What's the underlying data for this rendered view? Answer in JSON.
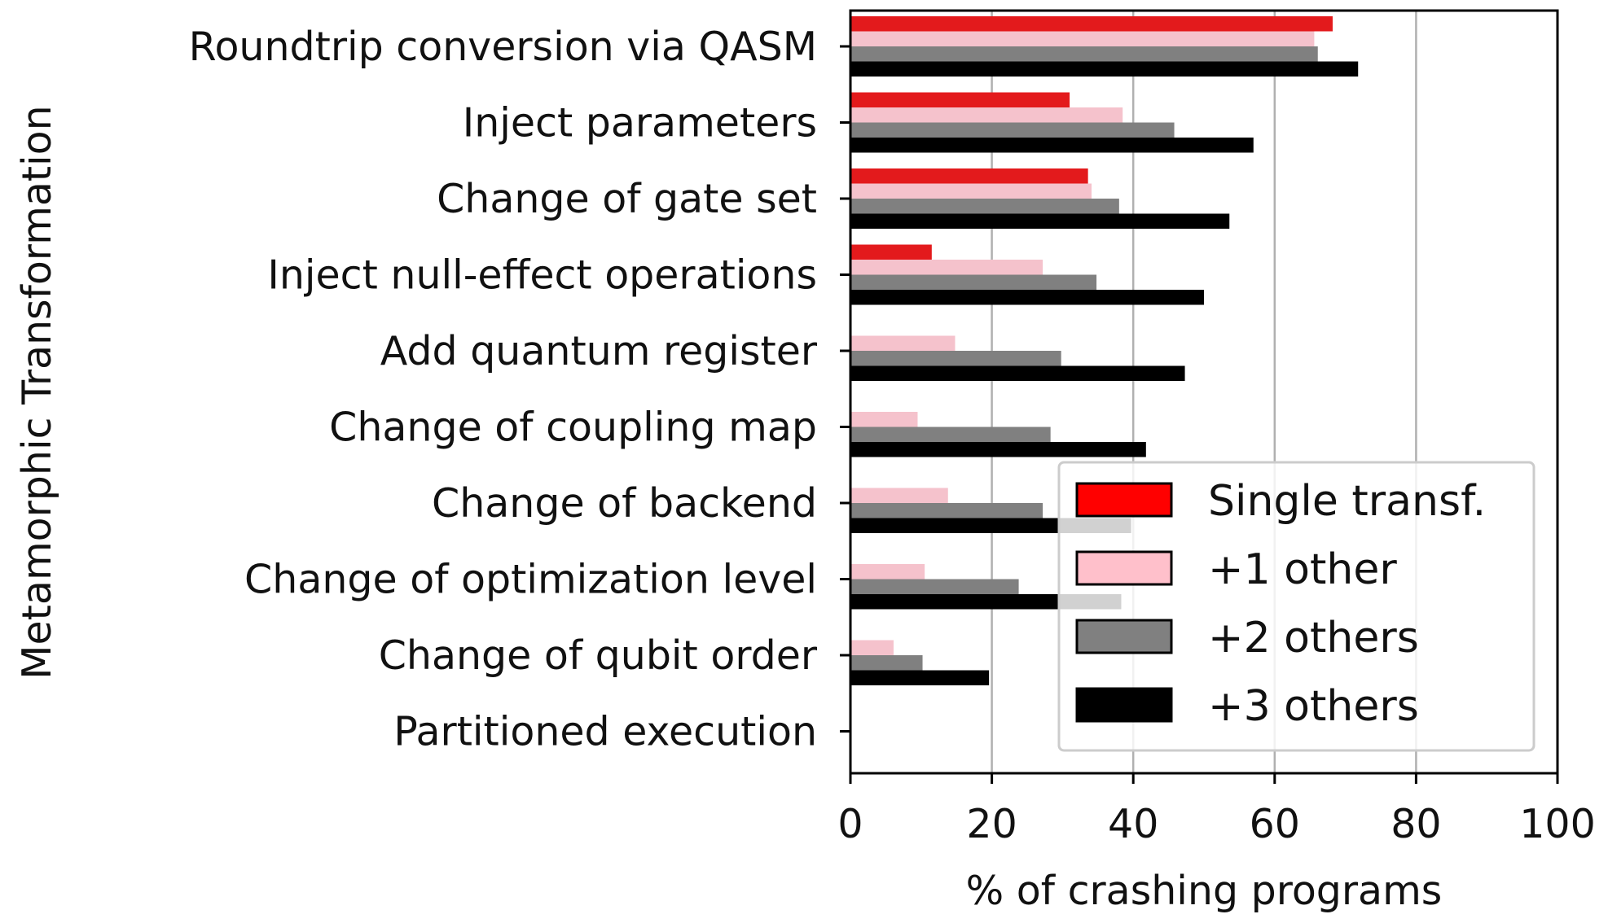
{
  "chart_data": {
    "type": "bar",
    "orientation": "horizontal",
    "title": "",
    "xlabel": "% of crashing programs",
    "ylabel": "Metamorphic Transformation",
    "xlim": [
      0,
      100
    ],
    "xticks": [
      "0",
      "20",
      "40",
      "60",
      "80",
      "100"
    ],
    "grid": "vertical gridlines at 20, 40, 60, 80",
    "legend_position": "bottom-right",
    "categories": [
      "Roundtrip conversion via QASM",
      "Inject parameters",
      "Change of gate set",
      "Inject null-effect operations",
      "Add quantum register",
      "Change of coupling map",
      "Change of backend",
      "Change of optimization level",
      "Change of qubit order",
      "Partitioned execution"
    ],
    "series": [
      {
        "name": "Single transf.",
        "color": "#e31a1c",
        "legend_color": "#ff0000",
        "values": [
          68.2,
          31.0,
          33.6,
          11.5,
          0,
          0,
          0,
          0,
          0,
          0
        ]
      },
      {
        "name": "+1 other",
        "color": "#f5c2cc",
        "legend_color": "#ffc0cb",
        "values": [
          65.6,
          38.5,
          34.1,
          27.2,
          14.8,
          9.5,
          13.8,
          10.5,
          6.1,
          0
        ]
      },
      {
        "name": "+2 others",
        "color": "#808080",
        "legend_color": "#808080",
        "values": [
          66.1,
          45.8,
          38.0,
          34.8,
          29.8,
          28.3,
          27.2,
          23.8,
          10.2,
          0
        ]
      },
      {
        "name": "+3 others",
        "color": "#000000",
        "legend_color": "#000000",
        "values": [
          71.8,
          57.0,
          53.6,
          50.0,
          47.3,
          41.8,
          39.7,
          38.3,
          19.6,
          0
        ]
      }
    ]
  }
}
